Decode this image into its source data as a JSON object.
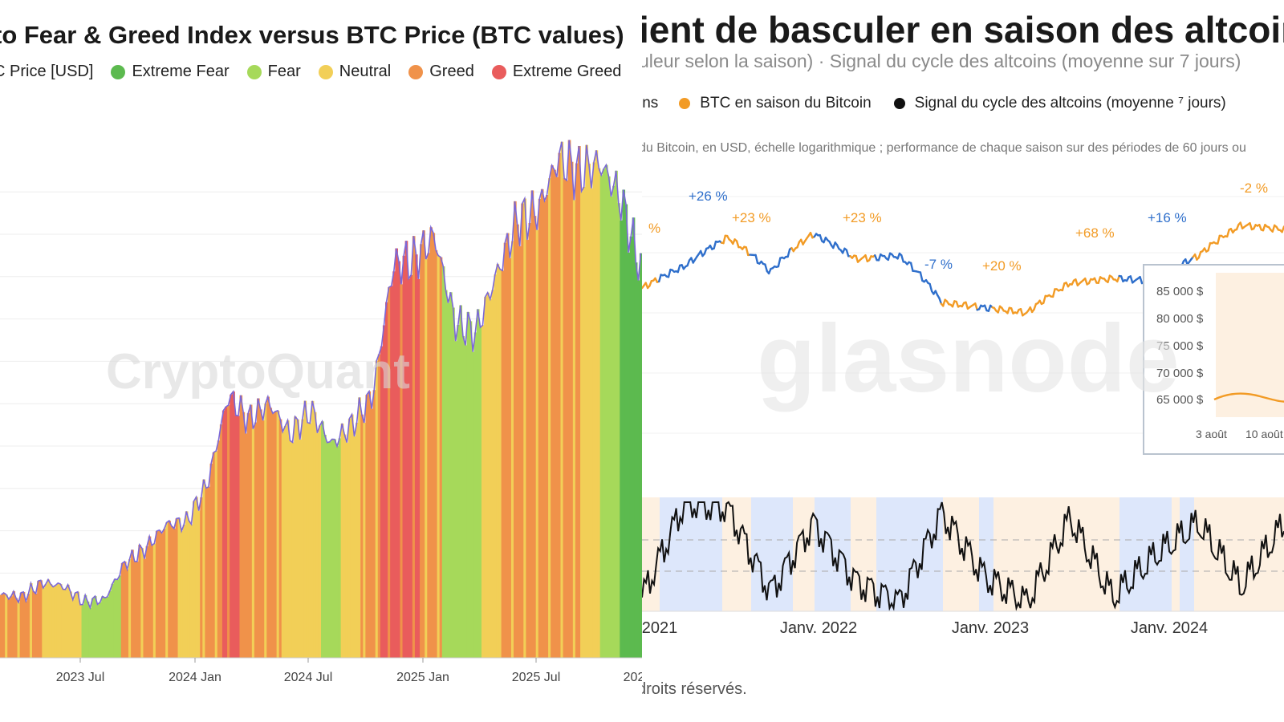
{
  "left": {
    "title": "to Fear & Greed Index versus BTC Price (BTC values)",
    "legend": [
      {
        "label": "C Price [USD]",
        "color": ""
      },
      {
        "label": "Extreme Fear",
        "color": "#5cba4f"
      },
      {
        "label": "Fear",
        "color": "#a6d95a"
      },
      {
        "label": "Neutral",
        "color": "#f2cf57"
      },
      {
        "label": "Greed",
        "color": "#f0924a"
      },
      {
        "label": "Extreme Greed",
        "color": "#e95c5c"
      }
    ],
    "watermark": "CryptoQuant",
    "price_line_color": "#7b68d8"
  },
  "right": {
    "title": "ient de basculer en saison des altcoins",
    "subtitle": "uleur selon la saison) · Signal du cycle des altcoins (moyenne sur 7 jours)",
    "legend": [
      {
        "label": "ins",
        "color": ""
      },
      {
        "label": "BTC en saison du Bitcoin",
        "color": "#f29b25"
      },
      {
        "label": "Signal du cycle des altcoins (moyenne ⁷ jours)",
        "color": "#111111"
      }
    ],
    "note": "du Bitcoin, en USD, échelle logarithmique ; performance de chaque saison sur des périodes de 60 jours ou",
    "watermark": "glasnode",
    "copyright": "droits réservés.",
    "colors": {
      "altseason": "#2f6fcb",
      "btcseason": "#f29b25",
      "band_blue": "#dde7fb",
      "band_orange": "#fdf0e1",
      "signal": "#111111"
    },
    "annotations": [
      {
        "text": "%",
        "color": "#f29b25"
      },
      {
        "text": "+26 %",
        "color": "#2f6fcb"
      },
      {
        "text": "+23 %",
        "color": "#f29b25"
      },
      {
        "text": "+23 %",
        "color": "#f29b25"
      },
      {
        "text": "-7 %",
        "color": "#2f6fcb"
      },
      {
        "text": "+20 %",
        "color": "#f29b25"
      },
      {
        "text": "+68 %",
        "color": "#f29b25"
      },
      {
        "text": "+16 %",
        "color": "#2f6fcb"
      },
      {
        "text": "-2 %",
        "color": "#f29b25"
      }
    ],
    "inset": {
      "y_labels": [
        "85 000 $",
        "80 000 $",
        "75 000 $",
        "70 000 $",
        "65 000 $"
      ],
      "x_labels": [
        "3 août",
        "10 août"
      ]
    }
  },
  "chart_data": [
    {
      "type": "bar",
      "title": "to Fear & Greed Index versus BTC Price (BTC values)",
      "x_ticks": [
        "2023 Jul",
        "2024 Jan",
        "2024 Jul",
        "2025 Jan",
        "2025 Jul",
        "202"
      ],
      "series": [
        {
          "name": "C Price [USD]",
          "x": [
            "2023-04",
            "2023-05",
            "2023-06",
            "2023-07",
            "2023-08",
            "2023-09",
            "2023-10",
            "2023-11",
            "2023-12",
            "2024-01",
            "2024-02",
            "2024-03",
            "2024-04",
            "2024-05",
            "2024-06",
            "2024-07",
            "2024-08",
            "2024-09",
            "2024-10",
            "2024-11",
            "2024-12",
            "2025-01",
            "2025-02",
            "2025-03",
            "2025-04",
            "2025-05",
            "2025-06",
            "2025-07",
            "2025-08",
            "2025-09",
            "2025-10",
            "2025-11"
          ],
          "values": [
            28000,
            27500,
            30500,
            29800,
            26500,
            27000,
            34500,
            37500,
            42500,
            43000,
            51000,
            69000,
            64000,
            67500,
            61000,
            66000,
            59000,
            63000,
            69000,
            96000,
            97000,
            102000,
            84000,
            82000,
            94000,
            105000,
            107000,
            118000,
            115000,
            117000,
            110000,
            95000
          ]
        }
      ],
      "sentiment_sequence": [
        "Greed",
        "Greed",
        "Neutral",
        "Neutral",
        "Fear",
        "Fear",
        "Greed",
        "Greed",
        "Greed",
        "Neutral",
        "Greed",
        "Extreme Greed",
        "Greed",
        "Greed",
        "Neutral",
        "Neutral",
        "Fear",
        "Neutral",
        "Greed",
        "Extreme Greed",
        "Extreme Greed",
        "Greed",
        "Fear",
        "Fear",
        "Neutral",
        "Greed",
        "Greed",
        "Greed",
        "Greed",
        "Neutral",
        "Fear",
        "Extreme Fear"
      ],
      "legend": [
        "C Price [USD]",
        "Extreme Fear",
        "Fear",
        "Neutral",
        "Greed",
        "Extreme Greed"
      ]
    },
    {
      "type": "line",
      "title": "ient de basculer en saison des altcoins",
      "x_ticks": [
        "2021",
        "Janv. 2022",
        "Janv. 2023",
        "Janv. 2024"
      ],
      "y_scale": "log",
      "series": [
        {
          "name": "BTC en saison du Bitcoin",
          "x": [
            "2020-10",
            "2021-01",
            "2021-04",
            "2021-07",
            "2021-10",
            "2022-01",
            "2022-04",
            "2022-07",
            "2022-10",
            "2023-01",
            "2023-04",
            "2023-07",
            "2023-10",
            "2024-01",
            "2024-04",
            "2024-07"
          ],
          "values": [
            26000,
            36000,
            55000,
            33000,
            58000,
            40000,
            42000,
            21000,
            19500,
            18000,
            28000,
            30000,
            29000,
            42000,
            66000,
            62000
          ]
        },
        {
          "name": "Signal du cycle des altcoins (moyenne ⁷ jours)",
          "x": [
            "2020-10",
            "2021-01",
            "2021-04",
            "2021-07",
            "2021-10",
            "2022-01",
            "2022-04",
            "2022-07",
            "2022-10",
            "2023-01",
            "2023-04",
            "2023-07",
            "2023-10",
            "2024-01",
            "2024-04",
            "2024-07"
          ],
          "values": [
            0.1,
            1.0,
            0.95,
            0.15,
            0.8,
            0.25,
            0.05,
            0.9,
            0.3,
            0.05,
            0.85,
            0.1,
            0.5,
            0.8,
            0.2,
            0.8
          ]
        }
      ],
      "annotations": [
        "%",
        "+26 %",
        "+23 %",
        "+23 %",
        "-7 %",
        "+20 %",
        "+68 %",
        "+16 %",
        "-2 %"
      ],
      "inset": {
        "y_ticks": [
          "85 000 $",
          "80 000 $",
          "75 000 $",
          "70 000 $",
          "65 000 $"
        ],
        "x_ticks": [
          "3 août",
          "10 août"
        ]
      }
    }
  ]
}
